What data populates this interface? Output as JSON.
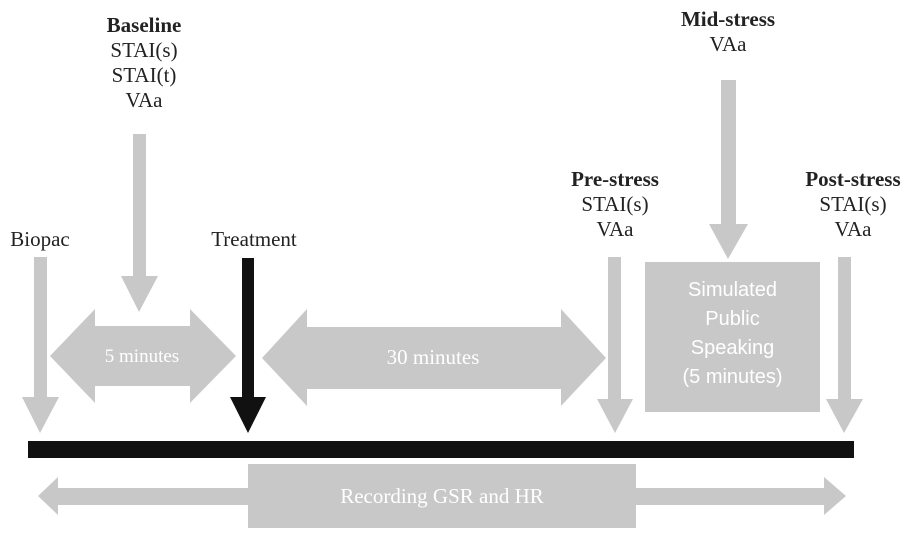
{
  "colors": {
    "gray": "#c8c8c8",
    "black": "#111111",
    "text": "#222222",
    "white": "#ffffff"
  },
  "labels": {
    "biopac": "Biopac",
    "baseline": {
      "title": "Baseline",
      "l1": "STAI(s)",
      "l2": "STAI(t)",
      "l3": "VAa"
    },
    "treatment": "Treatment",
    "prestress": {
      "title": "Pre-stress",
      "l1": "STAI(s)",
      "l2": "VAa"
    },
    "midstress": {
      "title": "Mid-stress",
      "l1": "VAa"
    },
    "poststress": {
      "title": "Post-stress",
      "l1": "STAI(s)",
      "l2": "VAa"
    }
  },
  "intervals": {
    "five_min": "5 minutes",
    "thirty_min": "30 minutes"
  },
  "box": {
    "l1": "Simulated",
    "l2": "Public",
    "l3": "Speaking",
    "l4": "(5 minutes)"
  },
  "recording": "Recording GSR and HR"
}
